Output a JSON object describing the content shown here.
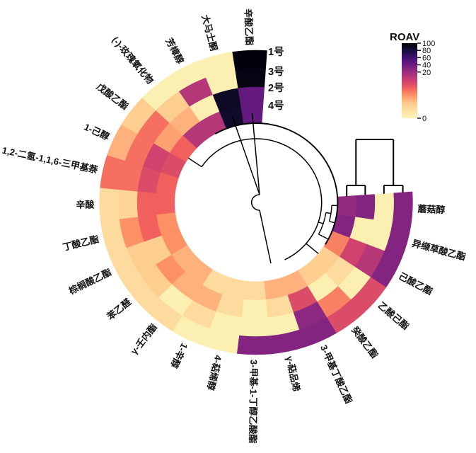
{
  "legend": {
    "title": "ROAV",
    "ticks": [
      100,
      80,
      60,
      40,
      20,
      0
    ]
  },
  "rings": [
    "1号",
    "3号",
    "2号",
    "4号"
  ],
  "colors": {
    "high": "#000004",
    "dark_purple": "#451077",
    "purple": "#822681",
    "magenta": "#B73779",
    "red": "#CD4071",
    "orange": "#FD9567",
    "low_cream": "#FCF6B8",
    "background": "#ffffff",
    "line": "#000000"
  },
  "chart_data": {
    "type": "heatmap",
    "layout": "circular",
    "title": "",
    "value_label": "ROAV",
    "value_range": [
      0,
      100
    ],
    "colormap": "magma (dark = high ROAV, cream = 0), non-linear legend: 20-100 compressed at top, 0-20 stretched",
    "gap_position": "top-right",
    "start_angle_deg": 4,
    "wedge_step_deg": 12.636,
    "rings_outer_to_inner": [
      "1号",
      "3号",
      "2号",
      "4号"
    ],
    "sample_dendrogram_clusters": [
      [
        "4号",
        "2号"
      ],
      [
        "3号",
        "1号"
      ]
    ],
    "compounds_clockwise_from_gap": [
      "蘑菇醇",
      "异缬草酸乙酯",
      "己酸乙酯",
      "乙酸己酯",
      "癸酸乙酯",
      "3-甲基丁酸乙酯",
      "γ-萜品烯",
      "3-甲基-1-丁醇乙酸酯",
      "4-萜烯醇",
      "1-辛醇",
      "γ-壬内酯",
      "苯乙醛",
      "棕榈酸乙酯",
      "丁酸乙酯",
      "辛酸",
      "1,2-二氢-1,1,6-三甲基萘",
      "1-己醇",
      "戊酸乙酯",
      "(-)-玫瑰氧化物",
      "芳樟醇",
      "大马士酮",
      "辛酸乙酯"
    ],
    "values_rows_compounds_cols_rings_1_3_2_4": [
      [
        30,
        1,
        30,
        22
      ],
      [
        30,
        1,
        1,
        30
      ],
      [
        30,
        18,
        16,
        11
      ],
      [
        15,
        1,
        4,
        6
      ],
      [
        15,
        11,
        1,
        6
      ],
      [
        30,
        26,
        15,
        8
      ],
      [
        30,
        1,
        4,
        8
      ],
      [
        30,
        1,
        1,
        4
      ],
      [
        1,
        1,
        4,
        4
      ],
      [
        1,
        4,
        8,
        4
      ],
      [
        4,
        1,
        8,
        8
      ],
      [
        4,
        6,
        10,
        8
      ],
      [
        4,
        6,
        6,
        10
      ],
      [
        4,
        10,
        13,
        10
      ],
      [
        4,
        5,
        13,
        13
      ],
      [
        12,
        12,
        15,
        13
      ],
      [
        8,
        12,
        16,
        15
      ],
      [
        6,
        12,
        9,
        13
      ],
      [
        1,
        6,
        8,
        18
      ],
      [
        1,
        18,
        1,
        18
      ],
      [
        1,
        1,
        88,
        86
      ],
      [
        97,
        95,
        44,
        44
      ]
    ]
  }
}
